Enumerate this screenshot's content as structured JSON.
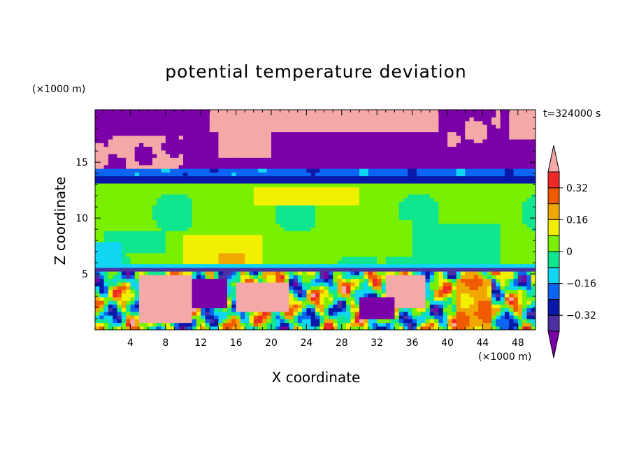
{
  "chart_data": {
    "type": "heatmap",
    "title": "potential temperature deviation",
    "xlabel": "X coordinate",
    "ylabel": "Z coordinate",
    "x_unit": "(×1000 m)",
    "y_unit": "(×1000 m)",
    "time_label": "t=324000 s",
    "xlim": [
      0,
      50
    ],
    "ylim": [
      0,
      19.7
    ],
    "x_ticks": [
      4,
      8,
      12,
      16,
      20,
      24,
      28,
      32,
      36,
      40,
      44,
      48
    ],
    "y_ticks": [
      5,
      10,
      15
    ],
    "colorbar": {
      "labels": [
        "0.32",
        "0.16",
        "0",
        "-0.16",
        "-0.32"
      ],
      "label_values": [
        0.32,
        0.16,
        0,
        -0.16,
        -0.32
      ],
      "levels": [
        -0.4,
        -0.32,
        -0.24,
        -0.16,
        -0.08,
        0,
        0.08,
        0.16,
        0.24,
        0.32,
        0.4
      ],
      "colors": [
        "#7a00a8",
        "#4d2fa3",
        "#0a18a8",
        "#0c64f2",
        "#10d6f4",
        "#10e690",
        "#78f000",
        "#f0f000",
        "#f0a800",
        "#f05a00",
        "#f02828",
        "#f5a8a8"
      ]
    },
    "regions": [
      {
        "name": "upper-layer",
        "z_range": [
          15,
          19.7
        ],
        "dominant_value": "below -0.4"
      },
      {
        "name": "pink-cloud-patches",
        "z_range": [
          14.5,
          19.7
        ],
        "dominant_value": "above 0.4"
      },
      {
        "name": "inversion-band",
        "z_range": [
          13,
          14.5
        ],
        "dominant_value": "-0.32"
      },
      {
        "name": "mid-layer",
        "z_range": [
          5.2,
          13
        ],
        "dominant_value": "0 to 0.08"
      },
      {
        "name": "lower-layer",
        "z_range": [
          0,
          5.2
        ],
        "dominant_value": "mixed -0.4 to 0.4"
      }
    ],
    "grid": false
  },
  "colors": {
    "background": "#ffffff",
    "frame": "#000000"
  }
}
